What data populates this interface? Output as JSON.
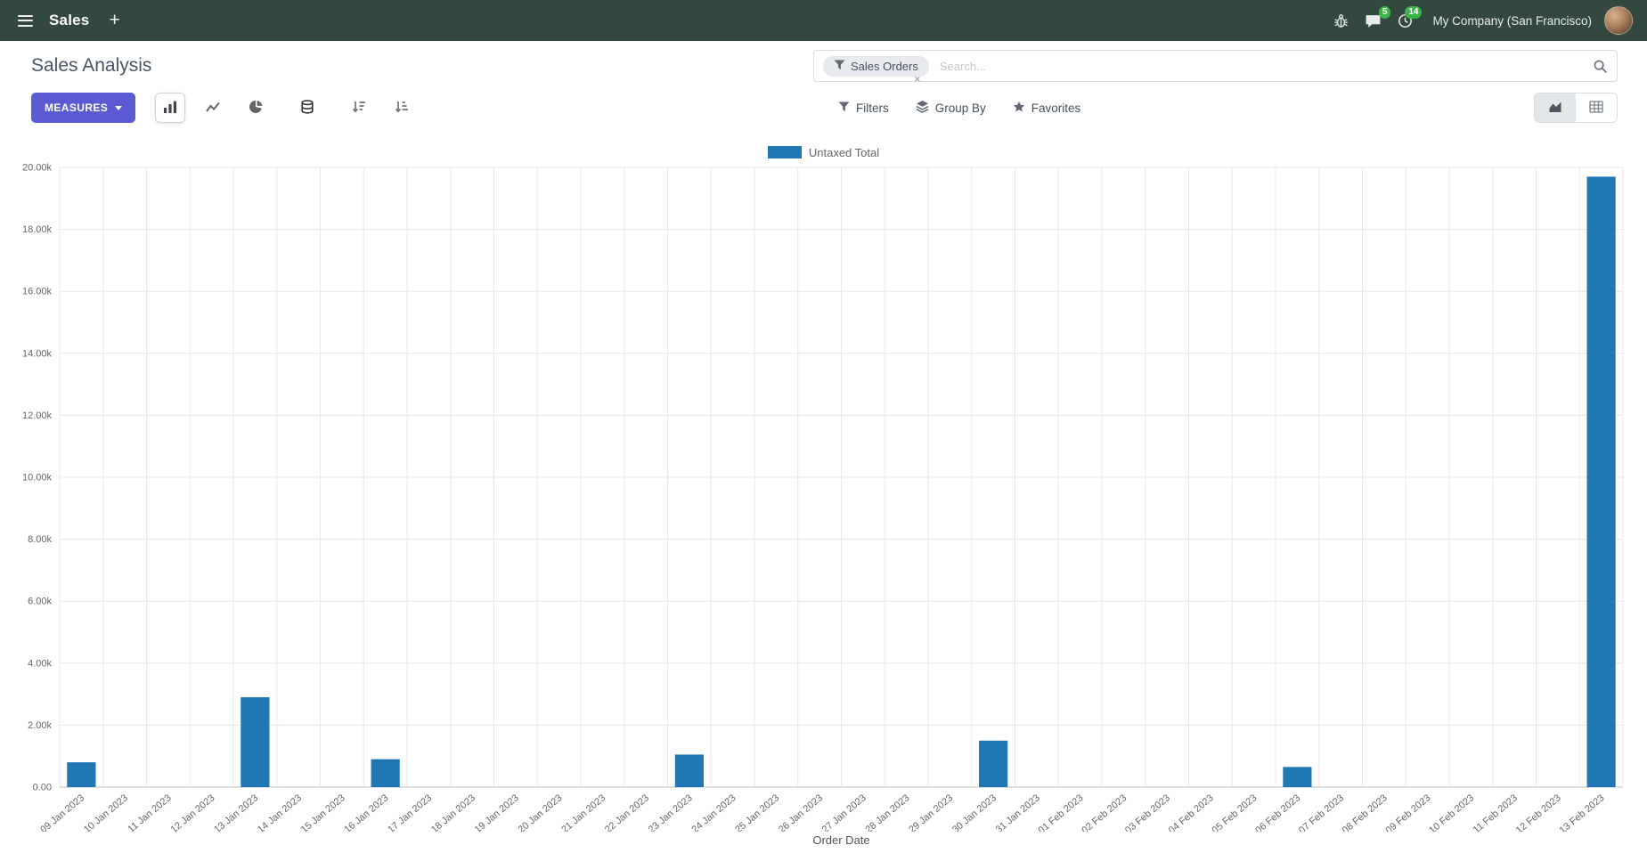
{
  "colors": {
    "navbar_bg": "#33483e",
    "accent": "#5b5ad2",
    "badge": "#3bb54a"
  },
  "navbar": {
    "app_name": "Sales",
    "plus": "+",
    "chat_badge": "5",
    "activity_badge": "14",
    "company": "My Company (San Francisco)"
  },
  "control_panel": {
    "title": "Sales Analysis",
    "measures_label": "MEASURES",
    "search": {
      "facet_label": "Sales Orders",
      "facet_remove": "×",
      "placeholder": "Search..."
    },
    "filters_label": "Filters",
    "group_by_label": "Group By",
    "favorites_label": "Favorites"
  },
  "chart_data": {
    "type": "bar",
    "title": "",
    "xlabel": "Order Date",
    "ylabel": "",
    "ylim": [
      0,
      20000
    ],
    "ytick_step": 2000,
    "ytick_labels": [
      "0.00",
      "2.00k",
      "4.00k",
      "6.00k",
      "8.00k",
      "10.00k",
      "12.00k",
      "14.00k",
      "16.00k",
      "18.00k",
      "20.00k"
    ],
    "grid": true,
    "legend_position": "top",
    "categories": [
      "09 Jan 2023",
      "10 Jan 2023",
      "11 Jan 2023",
      "12 Jan 2023",
      "13 Jan 2023",
      "14 Jan 2023",
      "15 Jan 2023",
      "16 Jan 2023",
      "17 Jan 2023",
      "18 Jan 2023",
      "19 Jan 2023",
      "20 Jan 2023",
      "21 Jan 2023",
      "22 Jan 2023",
      "23 Jan 2023",
      "24 Jan 2023",
      "25 Jan 2023",
      "26 Jan 2023",
      "27 Jan 2023",
      "28 Jan 2023",
      "29 Jan 2023",
      "30 Jan 2023",
      "31 Jan 2023",
      "01 Feb 2023",
      "02 Feb 2023",
      "03 Feb 2023",
      "04 Feb 2023",
      "05 Feb 2023",
      "06 Feb 2023",
      "07 Feb 2023",
      "08 Feb 2023",
      "09 Feb 2023",
      "10 Feb 2023",
      "11 Feb 2023",
      "12 Feb 2023",
      "13 Feb 2023"
    ],
    "series": [
      {
        "name": "Untaxed Total",
        "color": "#1f77b4",
        "values": [
          800,
          0,
          0,
          0,
          2900,
          0,
          0,
          900,
          0,
          0,
          0,
          0,
          0,
          0,
          1050,
          0,
          0,
          0,
          0,
          0,
          0,
          1500,
          0,
          0,
          0,
          0,
          0,
          0,
          650,
          0,
          0,
          0,
          0,
          0,
          0,
          19700
        ]
      }
    ]
  }
}
